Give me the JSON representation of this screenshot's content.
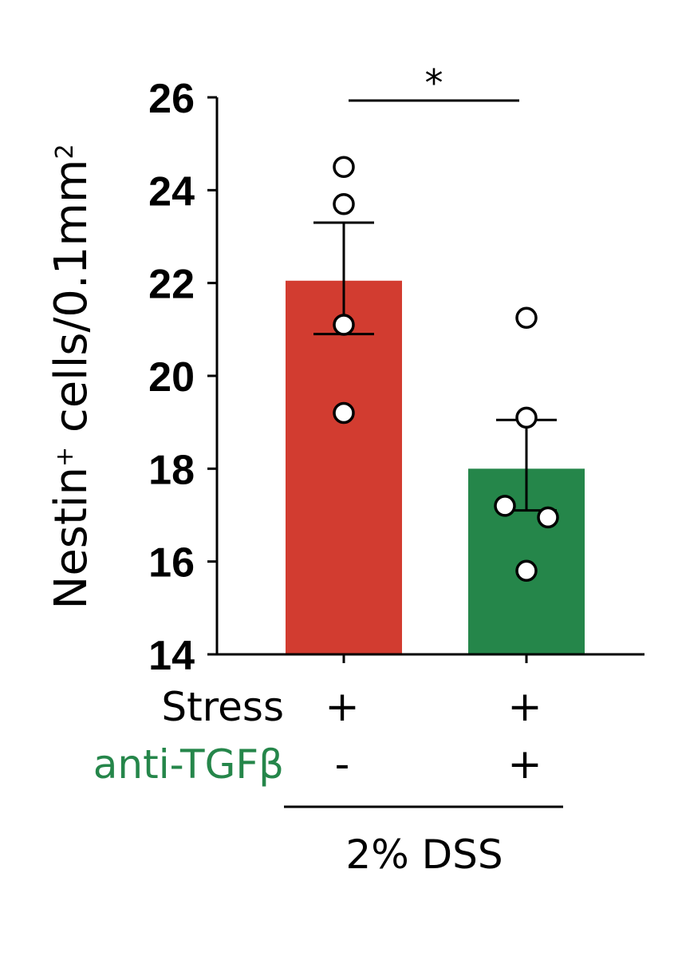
{
  "chart_data": {
    "type": "bar",
    "categories": [
      "Stress + / anti-TGFβ -",
      "Stress + / anti-TGFβ +"
    ],
    "values": [
      22.05,
      18.0
    ],
    "error_upper": [
      23.3,
      19.05
    ],
    "error_lower": [
      20.9,
      17.1
    ],
    "points": [
      [
        24.5,
        23.7,
        21.1,
        19.2
      ],
      [
        21.25,
        19.1,
        17.2,
        16.95,
        15.8
      ]
    ],
    "colors": [
      "#d23c30",
      "#25864a"
    ],
    "ylabel_main": "Nestin",
    "ylabel_sup": "+",
    "ylabel_rest": " cells/0.1mm",
    "ylabel_sup2": "2",
    "ylim": [
      14,
      26
    ],
    "yticks": [
      "14",
      "16",
      "18",
      "20",
      "22",
      "24",
      "26"
    ],
    "significance": "*",
    "rows": [
      {
        "label": "Stress",
        "color": "#000000",
        "signs": [
          "+",
          "+"
        ]
      },
      {
        "label": "anti-TGFβ",
        "color": "#25864a",
        "signs": [
          "-",
          "+"
        ]
      }
    ],
    "group_label": "2% DSS"
  }
}
